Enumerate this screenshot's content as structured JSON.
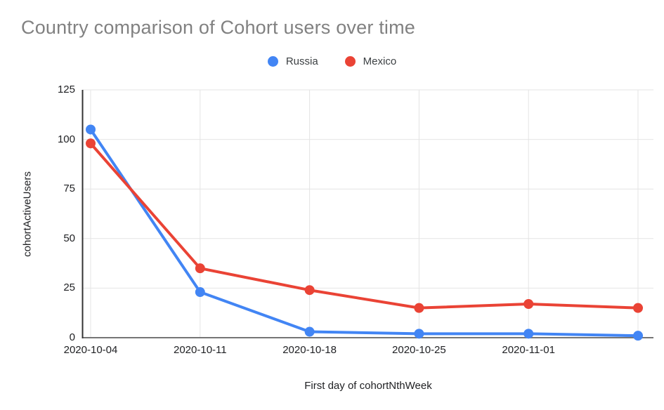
{
  "title": "Country comparison of Cohort users over time",
  "legend": {
    "items": [
      {
        "label": "Russia",
        "color": "#4285F4"
      },
      {
        "label": "Mexico",
        "color": "#EA4335"
      }
    ]
  },
  "chart_data": {
    "type": "line",
    "title": "Country comparison of Cohort users over time",
    "xlabel": "First day of cohortNthWeek",
    "ylabel": "cohortActiveUsers",
    "x_tick_labels": [
      "2020-10-04",
      "2020-10-11",
      "2020-10-18",
      "2020-10-25",
      "2020-11-01"
    ],
    "num_points": 6,
    "series": [
      {
        "name": "Russia",
        "color": "#4285F4",
        "values": [
          105,
          23,
          3,
          2,
          2,
          1
        ]
      },
      {
        "name": "Mexico",
        "color": "#EA4335",
        "values": [
          98,
          35,
          24,
          15,
          17,
          15
        ]
      }
    ],
    "y_ticks": [
      0,
      25,
      50,
      75,
      100,
      125
    ],
    "ylim": [
      0,
      125
    ],
    "grid": true,
    "legend_position": "top"
  },
  "colors": {
    "background": "#ffffff",
    "title": "#818181",
    "axis_text": "#202124",
    "gridline": "#e4e4e4",
    "axis_line": "#333333",
    "baseline": "#757575"
  }
}
